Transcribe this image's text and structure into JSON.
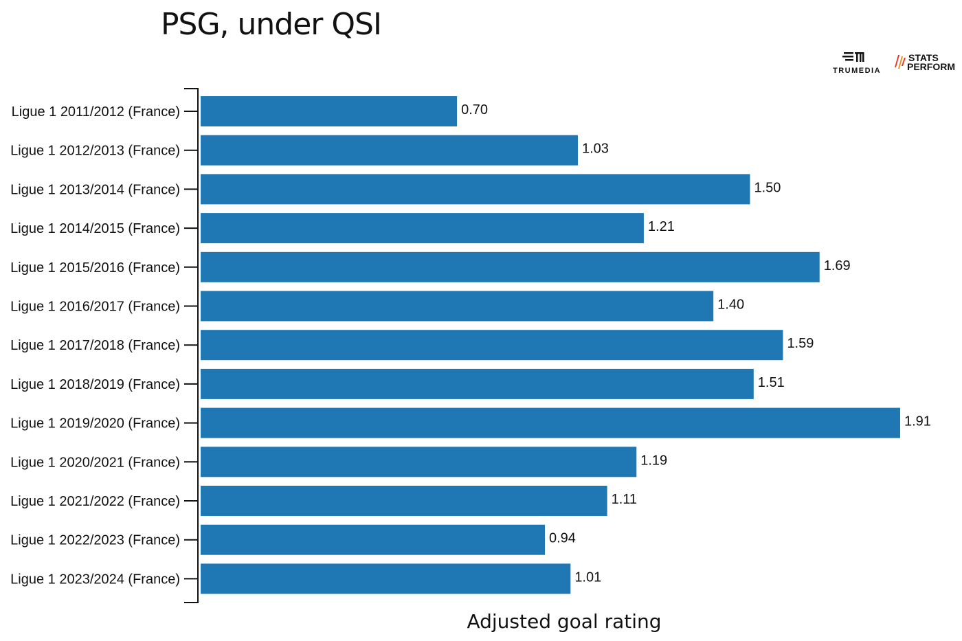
{
  "chart_data": {
    "type": "bar",
    "orientation": "horizontal",
    "title": "PSG, under QSI",
    "xlabel": "Adjusted goal rating",
    "ylabel": "",
    "categories": [
      "Ligue 1 2011/2012 (France)",
      "Ligue 1 2012/2013 (France)",
      "Ligue 1 2013/2014 (France)",
      "Ligue 1 2014/2015 (France)",
      "Ligue 1 2015/2016 (France)",
      "Ligue 1 2016/2017 (France)",
      "Ligue 1 2017/2018 (France)",
      "Ligue 1 2018/2019 (France)",
      "Ligue 1 2019/2020 (France)",
      "Ligue 1 2020/2021 (France)",
      "Ligue 1 2021/2022 (France)",
      "Ligue 1 2022/2023 (France)",
      "Ligue 1 2023/2024 (France)"
    ],
    "values": [
      0.7,
      1.03,
      1.5,
      1.21,
      1.69,
      1.4,
      1.59,
      1.51,
      1.91,
      1.19,
      1.11,
      0.94,
      1.01
    ],
    "value_labels": [
      "0.70",
      "1.03",
      "1.50",
      "1.21",
      "1.69",
      "1.40",
      "1.59",
      "1.51",
      "1.91",
      "1.19",
      "1.11",
      "0.94",
      "1.01"
    ],
    "xlim": [
      0,
      1.91
    ],
    "grid": false,
    "legend": "none",
    "bar_color": "#1f77b4"
  },
  "logos": {
    "trumedia": "TRUMEDIA",
    "stats_line1": "STATS",
    "stats_line2": "PERFORM",
    "stats_color": "#e8352b"
  }
}
